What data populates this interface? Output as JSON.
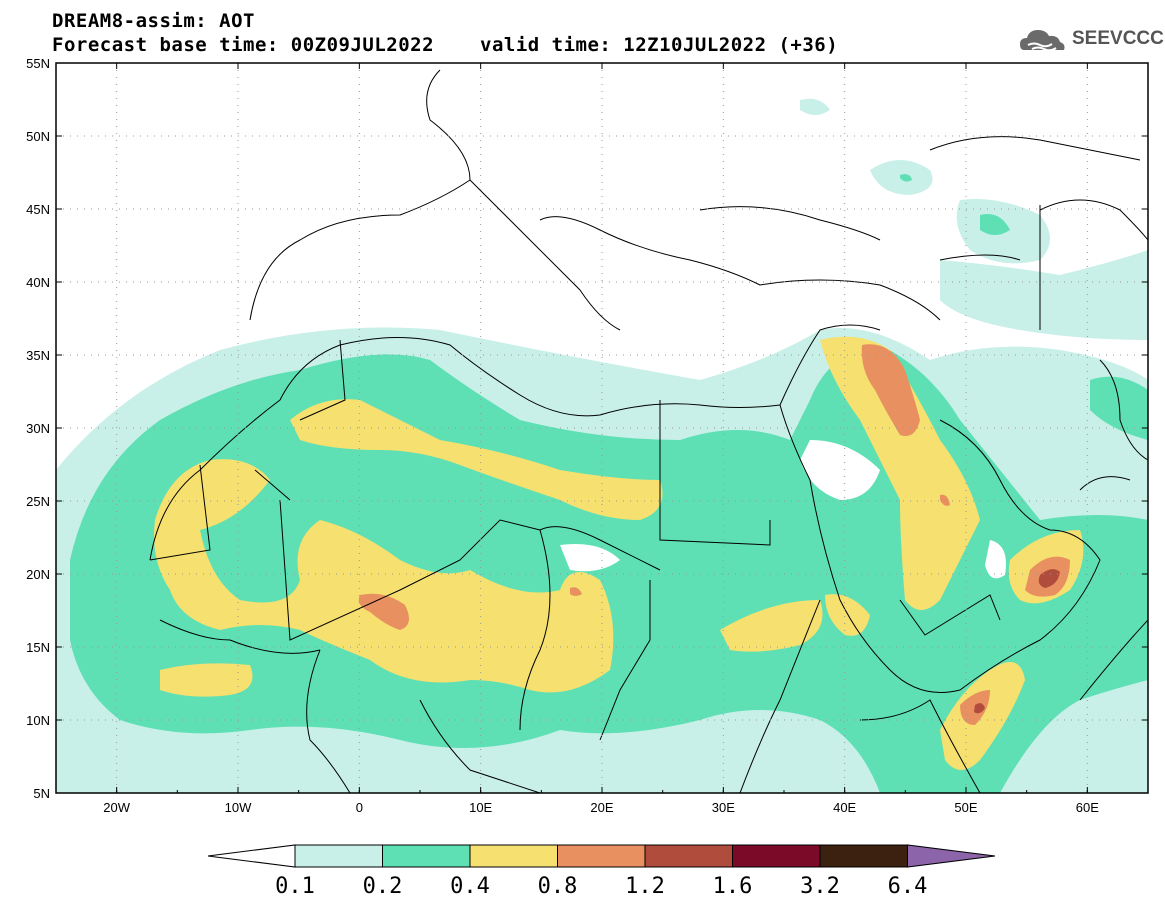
{
  "header": {
    "title": "DREAM8-assim: AOT",
    "base_time": "Forecast base time: 00Z09JUL2022",
    "valid_time": "valid time: 12Z10JUL2022 (+36)",
    "logo_text": "SEEVCCC"
  },
  "map": {
    "lon_range": [
      -25,
      65
    ],
    "lat_range": [
      5,
      55
    ],
    "lat_labels": [
      "55N",
      "50N",
      "45N",
      "40N",
      "35N",
      "30N",
      "25N",
      "20N",
      "15N",
      "10N",
      "5N"
    ],
    "lon_labels": [
      "20W",
      "10W",
      "0",
      "10E",
      "20E",
      "30E",
      "40E",
      "50E",
      "60E"
    ],
    "grid": "dotted"
  },
  "colorbar": {
    "labels": [
      "0.1",
      "0.2",
      "0.4",
      "0.8",
      "1.2",
      "1.6",
      "3.2",
      "6.4"
    ],
    "colors": [
      "#ffffff",
      "#c8f0e8",
      "#5ee0b4",
      "#f5e070",
      "#e89060",
      "#b04c3c",
      "#7a0a28",
      "#3c2010",
      "#8c64aa"
    ]
  }
}
